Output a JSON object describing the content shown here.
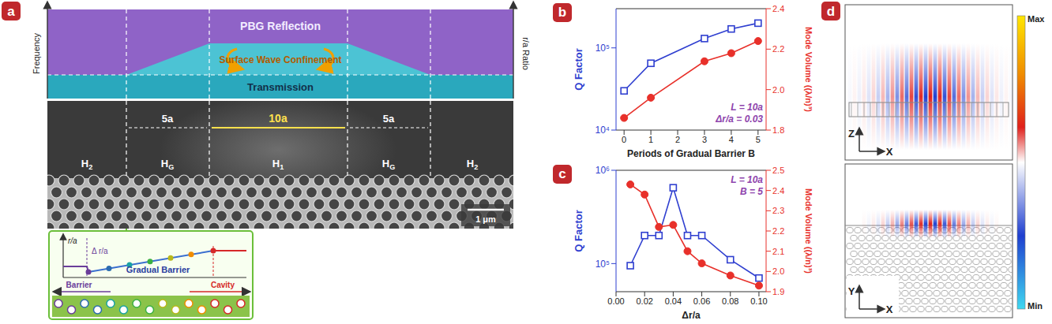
{
  "chart_data": [
    {
      "panel_label": "b",
      "type": "line",
      "x_label": "Periods of Gradual Barrier B",
      "y_label": "Q Factor",
      "y2_label": "Mode Volume ((λ/n)³)",
      "annotations": [
        "L = 10a",
        "Δr/a = 0.03"
      ],
      "x": [
        0,
        1,
        3,
        4,
        5
      ],
      "xlim": [
        -0.3,
        5.3
      ],
      "xticks": [
        0,
        1,
        2,
        3,
        4,
        5
      ],
      "log": "y",
      "ylim": [
        10000,
        300000
      ],
      "yticks": [
        {
          "value": 10000,
          "label": "10⁴"
        },
        {
          "value": 100000,
          "label": "10⁵"
        }
      ],
      "y2lim": [
        1.8,
        2.4
      ],
      "y2ticks": [
        1.8,
        {
          "value": 2,
          "label": "2.0"
        },
        2.2,
        2.4
      ],
      "series": [
        {
          "color": "#2f3fd0",
          "marker": "square",
          "values": [
            30000,
            65000,
            130000,
            170000,
            200000
          ]
        },
        {
          "color": "#e8302a",
          "marker": "circle",
          "axis": "y2",
          "values": [
            1.86,
            1.96,
            2.14,
            2.18,
            2.24
          ]
        }
      ]
    },
    {
      "panel_label": "c",
      "type": "line",
      "x_label": "Δr/a",
      "y_label": "Q Factor",
      "y2_label": "Mode Volume ((λ/n)³)",
      "annotations": [
        "L = 10a",
        "B = 5"
      ],
      "x": [
        0.01,
        0.02,
        0.03,
        0.04,
        0.05,
        0.06,
        0.08,
        0.1
      ],
      "xlim": [
        0,
        0.105
      ],
      "xticks": [
        {
          "value": 0,
          "label": "0.00"
        },
        {
          "value": 0.02,
          "label": "0.02"
        },
        {
          "value": 0.04,
          "label": "0.04"
        },
        {
          "value": 0.06,
          "label": "0.06"
        },
        {
          "value": 0.08,
          "label": "0.08"
        },
        {
          "value": 0.1,
          "label": "0.10"
        }
      ],
      "log": "y",
      "ylim": [
        50000,
        1000000
      ],
      "yticks": [
        {
          "value": 100000,
          "label": "10⁵"
        },
        {
          "value": 1000000,
          "label": "10⁶"
        }
      ],
      "y2lim": [
        1.9,
        2.5
      ],
      "y2ticks": [
        1.9,
        {
          "value": 2,
          "label": "2.0"
        },
        2.1,
        2.2,
        2.3,
        2.4,
        2.5
      ],
      "series": [
        {
          "color": "#2f3fd0",
          "marker": "square",
          "values": [
            95000,
            200000,
            200000,
            650000,
            200000,
            200000,
            110000,
            70000
          ]
        },
        {
          "color": "#e8302a",
          "marker": "circle",
          "axis": "y2",
          "values": [
            2.43,
            2.38,
            2.22,
            2.23,
            2.1,
            2.04,
            1.98,
            1.93
          ]
        }
      ]
    }
  ],
  "panels": {
    "a": {
      "letter": "a",
      "band_diagram": {
        "y_label": "Frequency",
        "y2_label": "r/a Ratio",
        "regions": [
          "PBG Reflection",
          "Surface Wave Confinement",
          "Transmission"
        ]
      },
      "sem": {
        "spans": [
          "5a",
          "10a",
          "5a"
        ],
        "sections": [
          {
            "text": "H",
            "sub": "2"
          },
          {
            "text": "H",
            "sub": "G"
          },
          {
            "text": "H",
            "sub": "1"
          },
          {
            "text": "H",
            "sub": "G"
          },
          {
            "text": "H",
            "sub": "2"
          }
        ],
        "scale_bar": "1 μm"
      },
      "inset": {
        "y_label": "r/a",
        "step_label": "Δ r/a",
        "curve_label": "Gradual Barrier",
        "left_label": "Barrier",
        "right_label": "Cavity"
      }
    },
    "d": {
      "letter": "d",
      "colorbar": {
        "max_label": "Max",
        "min_label": "Min"
      },
      "views": [
        {
          "axes": [
            "Z",
            "X"
          ]
        },
        {
          "axes": [
            "Y",
            "X"
          ]
        }
      ]
    }
  }
}
